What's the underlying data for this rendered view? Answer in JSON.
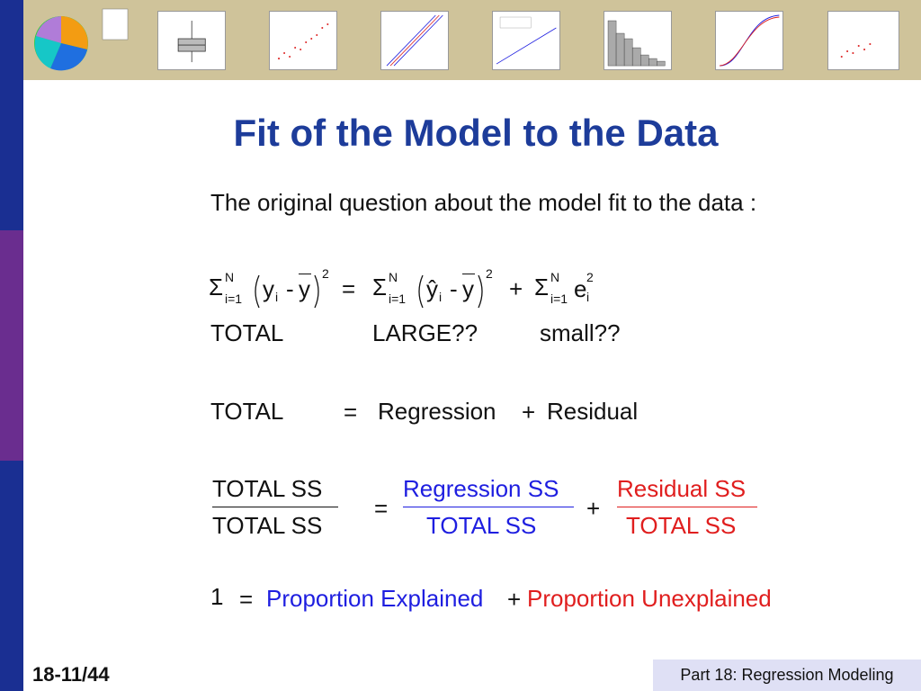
{
  "title": "Fit of the Model to the Data",
  "intro": "The original question about the model fit to the data :",
  "equation": {
    "sigma": "Σ",
    "upper": "N",
    "lower": "i=1",
    "y": "y",
    "yhat": "ŷ",
    "ybar": "y",
    "i": "i",
    "two": "2",
    "e": "e",
    "minus": "-",
    "equals": "=",
    "plus": "+"
  },
  "labels_row": {
    "total": "TOTAL",
    "large": "LARGE??",
    "small": "small??"
  },
  "decomposition": {
    "total": "TOTAL",
    "equals": "=",
    "regression": "Regression",
    "plus": "+",
    "residual": "Residual"
  },
  "ratios": {
    "total_num": "TOTAL SS",
    "total_den": "TOTAL SS",
    "equals": "=",
    "reg_num": "Regression SS",
    "reg_den": "TOTAL SS",
    "plus": "+",
    "res_num": "Residual SS",
    "res_den": "TOTAL SS"
  },
  "final": {
    "one": "1",
    "equals": "=",
    "explained": "Proportion Explained",
    "plus": "+",
    "unexplained": "Proportion Unexplained"
  },
  "footer": {
    "page": "18-11/44",
    "section": "Part 18: Regression Modeling"
  },
  "colors": {
    "title": "#1d3c9a",
    "blue": "#1e1ee0",
    "red": "#e01e1e",
    "sidebar_blue": "#1a2f92",
    "sidebar_purple": "#6a2d8f"
  }
}
